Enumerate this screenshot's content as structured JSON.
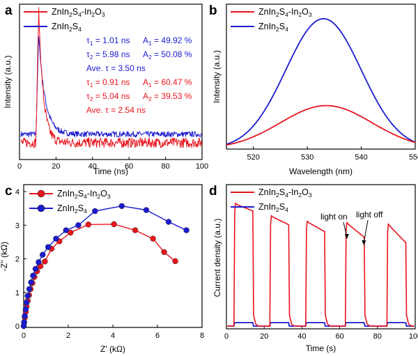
{
  "colors": {
    "red": "#e8141c",
    "blue": "#1a1ad0"
  },
  "chart_data": [
    {
      "panel": "a",
      "type": "line",
      "xlabel": "Time (ns)",
      "ylabel": "Intensity (a.u.)",
      "xlim": [
        0,
        100
      ],
      "xticks": [
        0,
        20,
        40,
        60,
        80,
        100
      ],
      "legend": [
        "ZnIn2S4-In2O3",
        "ZnIn2S4"
      ],
      "series": [
        {
          "name": "ZnIn2S4-In2O3",
          "color": "red",
          "baseline": 0.06,
          "noise": 0.035,
          "peak_x": 10.5,
          "peak": 1.0,
          "tau": 2.54
        },
        {
          "name": "ZnIn2S4",
          "color": "blue",
          "baseline": 0.12,
          "noise": 0.02,
          "peak_x": 10.5,
          "peak": 0.82,
          "tau": 3.5
        }
      ],
      "annotations": {
        "blue": [
          "τ1 = 1.01 ns",
          "A1 = 49.92 %",
          "τ2 = 5.98 ns",
          "A2 = 50.08 %",
          "Ave. τ = 3.50 ns"
        ],
        "red": [
          "τ1 = 0.91 ns",
          "A1 = 60.47 %",
          "τ2 = 5.04 ns",
          "A2 = 39.53 %",
          "Ave. τ = 2.54 ns"
        ]
      }
    },
    {
      "panel": "b",
      "type": "line",
      "xlabel": "Wavelength (nm)",
      "ylabel": "Intensity (a.u.)",
      "xlim": [
        515,
        550
      ],
      "xticks": [
        520,
        530,
        540,
        550
      ],
      "legend": [
        "ZnIn2S4-In2O3",
        "ZnIn2S4"
      ],
      "series": [
        {
          "name": "ZnIn2S4-In2O3",
          "color": "red",
          "center": 533.5,
          "height": 0.3,
          "width": 8.5
        },
        {
          "name": "ZnIn2S4",
          "color": "blue",
          "center": 533,
          "height": 0.9,
          "width": 7
        }
      ]
    },
    {
      "panel": "c",
      "type": "scatter",
      "xlabel": "Z' (kΩ)",
      "ylabel": "-Z'' (kΩ)",
      "xlim": [
        0,
        8
      ],
      "ylim": [
        0,
        4
      ],
      "xticks": [
        0,
        2,
        4,
        6,
        8
      ],
      "yticks": [
        0,
        1,
        2,
        3,
        4
      ],
      "legend": [
        "ZnIn2S4-In2O3",
        "ZnIn2S4"
      ],
      "series": [
        {
          "name": "ZnIn2S4-In2O3",
          "color": "red",
          "x": [
            0,
            0.02,
            0.05,
            0.09,
            0.13,
            0.18,
            0.24,
            0.31,
            0.39,
            0.48,
            0.6,
            0.75,
            0.95,
            1.25,
            1.6,
            2.1,
            2.9,
            4.05,
            5.0,
            5.8,
            6.3,
            6.8
          ],
          "y": [
            0,
            0.1,
            0.25,
            0.42,
            0.58,
            0.75,
            0.92,
            1.1,
            1.28,
            1.46,
            1.63,
            1.78,
            1.92,
            2.3,
            2.52,
            2.78,
            3.02,
            3.03,
            2.85,
            2.6,
            2.2,
            1.93
          ]
        },
        {
          "name": "ZnIn2S4",
          "color": "blue",
          "x": [
            0,
            0.02,
            0.05,
            0.09,
            0.13,
            0.18,
            0.25,
            0.33,
            0.42,
            0.53,
            0.67,
            0.85,
            1.1,
            1.45,
            1.9,
            2.45,
            3.2,
            4.4,
            5.5,
            6.5,
            7.3
          ],
          "y": [
            0,
            0.12,
            0.3,
            0.5,
            0.7,
            0.9,
            1.1,
            1.3,
            1.5,
            1.7,
            1.9,
            2.12,
            2.35,
            2.6,
            2.85,
            3.0,
            3.42,
            3.57,
            3.45,
            3.1,
            2.85
          ]
        }
      ]
    },
    {
      "panel": "d",
      "type": "line",
      "xlabel": "Time (s)",
      "ylabel": "Current density (a.u.)",
      "xlim": [
        0,
        100
      ],
      "xticks": [
        0,
        20,
        40,
        60,
        80,
        100
      ],
      "legend": [
        "ZnIn2S4-In2O3",
        "ZnIn2S4"
      ],
      "light_on_times": [
        4,
        23,
        42,
        63,
        85
      ],
      "light_duration": 10,
      "series": [
        {
          "name": "ZnIn2S4-In2O3",
          "color": "red",
          "dark": 0.02,
          "peaks": [
            0.91,
            0.82,
            0.78,
            0.77,
            0.76
          ],
          "ends": [
            0.86,
            0.76,
            0.71,
            0.67,
            0.63
          ]
        },
        {
          "name": "ZnIn2S4",
          "color": "blue",
          "dark": 0.02,
          "on": 0.045
        }
      ],
      "annotations": [
        "light on",
        "light off"
      ]
    }
  ]
}
